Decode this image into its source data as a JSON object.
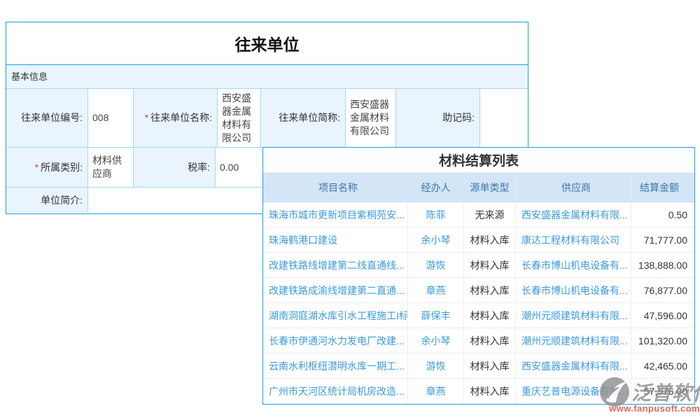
{
  "form": {
    "title": "往来单位",
    "section_label": "基本信息",
    "fields": {
      "code": {
        "label": "往来单位编号:",
        "value": "008"
      },
      "name": {
        "label": "往来单位名称:",
        "value": "西安盛器金属材料有限公司",
        "required": "*"
      },
      "short_name": {
        "label": "往来单位简称:",
        "value": "西安盛器金属材料有限公司"
      },
      "mnemonic": {
        "label": "助记码:",
        "value": ""
      },
      "category": {
        "label": "所属类别:",
        "value": "材料供应商",
        "required": "*"
      },
      "tax_rate": {
        "label": "税率:",
        "value": "0.00"
      },
      "intro": {
        "label": "单位简介:",
        "value": ""
      }
    }
  },
  "table": {
    "title": "材料结算列表",
    "columns": [
      "项目名称",
      "经办人",
      "源单类型",
      "供应商",
      "结算金额"
    ],
    "rows": [
      {
        "project": "珠海市城市更新项目紫桐苑安...",
        "operator": "陈菲",
        "source_type": "无来源",
        "supplier": "西安盛器金属材料有限...",
        "amount": "0.50"
      },
      {
        "project": "珠海鹤港口建设",
        "operator": "余小琴",
        "source_type": "材料入库",
        "supplier": "康达工程材料有限公司",
        "amount": "71,777.00"
      },
      {
        "project": "改建铁路线增建第二线直通线...",
        "operator": "游恢",
        "source_type": "材料入库",
        "supplier": "长春市博山机电设备有...",
        "amount": "138,888.00"
      },
      {
        "project": "改建铁路成渝线增建第二直通...",
        "operator": "章燕",
        "source_type": "材料入库",
        "supplier": "长春市博山机电设备有...",
        "amount": "76,877.00"
      },
      {
        "project": "湖南洞庭湖水库引水工程施工I标",
        "operator": "薛保丰",
        "source_type": "材料入库",
        "supplier": "潮州元顺建筑材料有限...",
        "amount": "47,596.00"
      },
      {
        "project": "长春市伊通河水力发电厂改建...",
        "operator": "余小琴",
        "source_type": "材料入库",
        "supplier": "潮州元顺建筑材料有限...",
        "amount": "101,320.00"
      },
      {
        "project": "云南水利枢纽潜明水库一期工...",
        "operator": "游恢",
        "source_type": "材料入库",
        "supplier": "西安盛器金属材料有限...",
        "amount": "42,465.00"
      },
      {
        "project": "广州市天河区统计局机房改造...",
        "operator": "章燕",
        "source_type": "材料入库",
        "supplier": "重庆艺普电源设备有限...",
        "amount": "57,576.00"
      }
    ]
  },
  "watermark": {
    "brand": "泛普软件",
    "url": "www.fanpusoft.com"
  },
  "colors": {
    "accent_border": "#1ba0dc",
    "cell_border": "#a9d6f0",
    "label_bg": "#e9f4fd",
    "table_header_bg": "#d3e5f6",
    "table_header_text": "#3b76ad",
    "link": "#3b9bdb",
    "required": "#e23c3c",
    "watermark_gray": "#8d8d8d",
    "watermark_red": "#dd4631"
  }
}
